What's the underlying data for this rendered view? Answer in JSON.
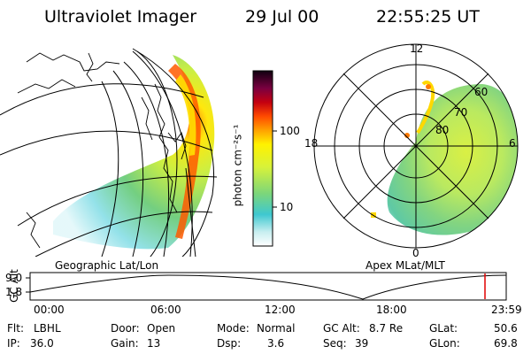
{
  "header": {
    "instrument": "Ultraviolet Imager",
    "date": "29 Jul 00",
    "time": "22:55:25 UT"
  },
  "left_panel": {
    "label": "Geographic Lat/Lon"
  },
  "right_panel": {
    "label": "Apex MLat/MLT",
    "mlt_labels": {
      "top": "12",
      "left": "18",
      "right": "6",
      "bottom": "0"
    },
    "lat_labels": [
      "60",
      "70",
      "80"
    ]
  },
  "colorbar": {
    "unit_label": "photon cm⁻²s⁻¹",
    "ticks": [
      "100",
      "10"
    ],
    "scale": "log"
  },
  "timeline": {
    "axis_label": "GC Alt",
    "y_ticks": [
      "9.0",
      "1.8"
    ],
    "x_ticks": [
      "00:00",
      "06:00",
      "12:00",
      "18:00",
      "23:59"
    ],
    "marker_color": "#e00000"
  },
  "info": {
    "filter_label": "Flt:",
    "filter_value": "LBHL",
    "ip_label": "IP:",
    "ip_value": "36.0",
    "door_label": "Door:",
    "door_value": "Open",
    "gain_label": "Gain:",
    "gain_value": "13",
    "mode_label": "Mode:",
    "mode_value": "Normal",
    "dsp_label": "Dsp:",
    "dsp_value": "3.6",
    "gcalt_label": "GC Alt:",
    "gcalt_value": "8.7 Re",
    "seq_label": "Seq:",
    "seq_value": "39",
    "glat_label": "GLat:",
    "glat_value": "50.6",
    "glon_label": "GLon:",
    "glon_value": "69.8"
  }
}
